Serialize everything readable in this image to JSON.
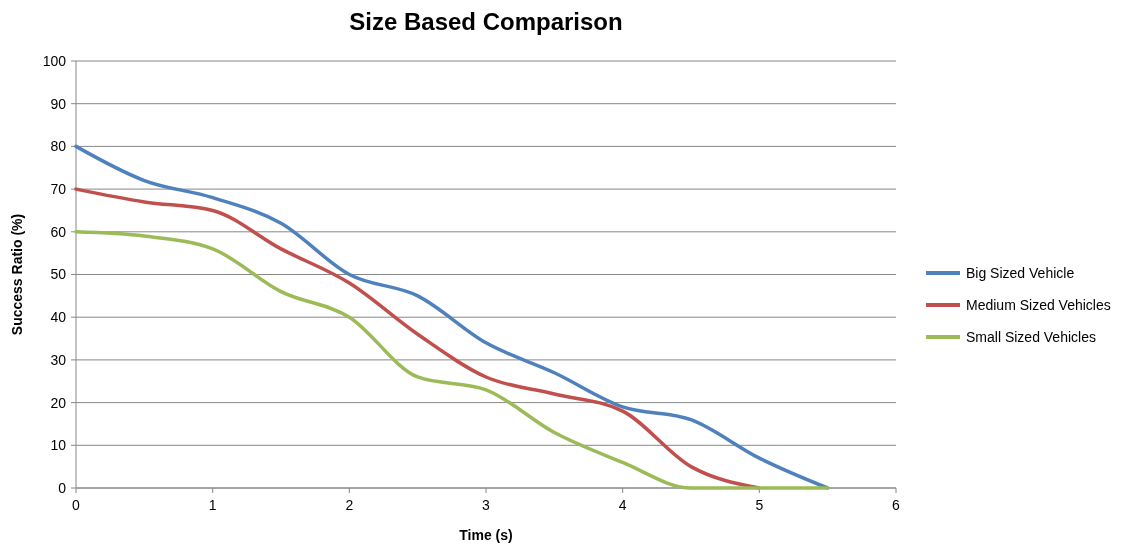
{
  "chart_data": {
    "type": "line",
    "title": "Size Based Comparison",
    "xlabel": "Time (s)",
    "ylabel": "Success Ratio (%)",
    "xlim": [
      0,
      6
    ],
    "xticks": [
      0,
      1,
      2,
      3,
      4,
      5,
      6
    ],
    "ylim": [
      0,
      100
    ],
    "yticks": [
      0,
      10,
      20,
      30,
      40,
      50,
      60,
      70,
      80,
      90,
      100
    ],
    "grid": "y",
    "legend": "right",
    "marker": "none",
    "line_style": "solid",
    "series": [
      {
        "name": "Big Sized Vehicle",
        "color": "#4f81bd",
        "x": [
          0,
          0.5,
          1,
          1.5,
          2,
          2.5,
          3,
          3.5,
          4,
          4.5,
          5,
          5.5
        ],
        "values": [
          80,
          72,
          68,
          62,
          50,
          45,
          34,
          27,
          19,
          16,
          7,
          0
        ]
      },
      {
        "name": "Medium Sized Vehicles",
        "color": "#c0504d",
        "x": [
          0,
          0.5,
          1,
          1.5,
          2,
          2.5,
          3,
          3.5,
          4,
          4.5,
          5
        ],
        "values": [
          70,
          67,
          65,
          56,
          48,
          36,
          26,
          22,
          18,
          5,
          0
        ]
      },
      {
        "name": "Small Sized Vehicles",
        "color": "#9bbb59",
        "x": [
          0,
          0.5,
          1,
          1.5,
          2,
          2.5,
          3,
          3.5,
          4,
          4.5,
          5,
          5.5
        ],
        "values": [
          60,
          59,
          56,
          46,
          40,
          26,
          23,
          13,
          6,
          0,
          0,
          0
        ]
      }
    ]
  }
}
